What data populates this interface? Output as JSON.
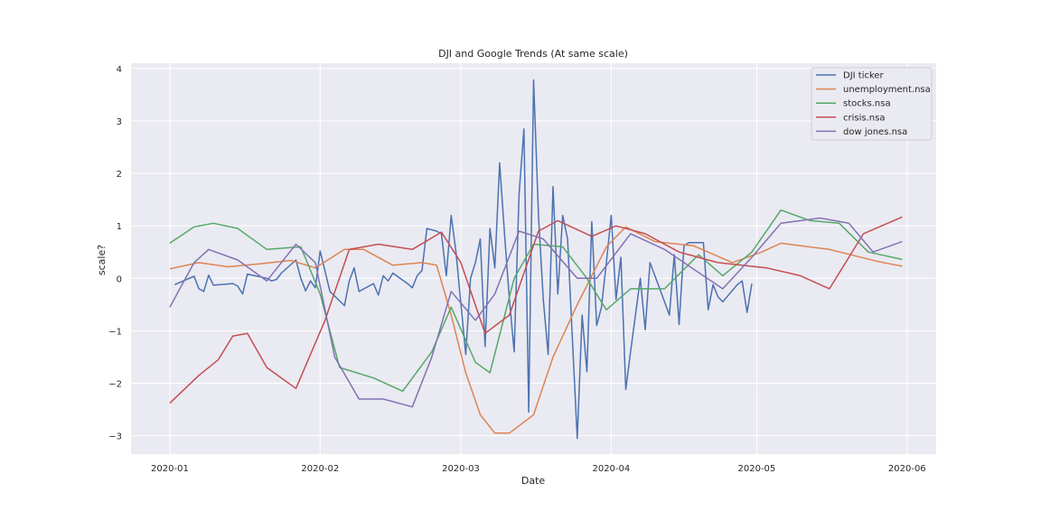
{
  "chart_data": {
    "type": "line",
    "title": "DJI and Google Trends (At same scale)",
    "xlabel": "Date",
    "ylabel": "scale?",
    "x_ticks": [
      "2020-01",
      "2020-02",
      "2020-03",
      "2020-04",
      "2020-05",
      "2020-06"
    ],
    "y_ticks": [
      -3,
      -2,
      -1,
      0,
      1,
      2,
      3,
      4
    ],
    "xlim": [
      "2019-12-24",
      "2020-06-07"
    ],
    "ylim": [
      -3.35,
      4.1
    ],
    "grid": true,
    "legend_position": "top-right",
    "series": [
      {
        "name": "DJI ticker",
        "color": "#4c72b0",
        "points": [
          [
            "2020-01-02",
            -0.12
          ],
          [
            "2020-01-06",
            0.04
          ],
          [
            "2020-01-07",
            -0.2
          ],
          [
            "2020-01-08",
            -0.25
          ],
          [
            "2020-01-09",
            0.06
          ],
          [
            "2020-01-10",
            -0.13
          ],
          [
            "2020-01-14",
            -0.1
          ],
          [
            "2020-01-15",
            -0.15
          ],
          [
            "2020-01-16",
            -0.3
          ],
          [
            "2020-01-17",
            0.08
          ],
          [
            "2020-01-21",
            0.0
          ],
          [
            "2020-01-22",
            -0.05
          ],
          [
            "2020-01-23",
            -0.02
          ],
          [
            "2020-01-24",
            0.1
          ],
          [
            "2020-01-27",
            0.35
          ],
          [
            "2020-01-28",
            0.0
          ],
          [
            "2020-01-29",
            -0.24
          ],
          [
            "2020-01-30",
            -0.05
          ],
          [
            "2020-01-31",
            -0.18
          ],
          [
            "2020-02-01",
            0.52
          ],
          [
            "2020-02-03",
            -0.25
          ],
          [
            "2020-02-06",
            -0.52
          ],
          [
            "2020-02-07",
            -0.05
          ],
          [
            "2020-02-08",
            0.2
          ],
          [
            "2020-02-09",
            -0.25
          ],
          [
            "2020-02-12",
            -0.1
          ],
          [
            "2020-02-13",
            -0.32
          ],
          [
            "2020-02-14",
            0.05
          ],
          [
            "2020-02-15",
            -0.05
          ],
          [
            "2020-02-16",
            0.1
          ],
          [
            "2020-02-19",
            -0.1
          ],
          [
            "2020-02-20",
            -0.18
          ],
          [
            "2020-02-21",
            0.05
          ],
          [
            "2020-02-22",
            0.15
          ],
          [
            "2020-02-23",
            0.95
          ],
          [
            "2020-02-25",
            0.9
          ],
          [
            "2020-02-26",
            0.85
          ],
          [
            "2020-02-27",
            0.05
          ],
          [
            "2020-02-28",
            1.2
          ],
          [
            "2020-02-29",
            0.5
          ],
          [
            "2020-03-02",
            -1.45
          ],
          [
            "2020-03-03",
            0.0
          ],
          [
            "2020-03-04",
            0.3
          ],
          [
            "2020-03-05",
            0.75
          ],
          [
            "2020-03-06",
            -1.3
          ],
          [
            "2020-03-07",
            0.95
          ],
          [
            "2020-03-08",
            0.2
          ],
          [
            "2020-03-09",
            2.2
          ],
          [
            "2020-03-10",
            0.85
          ],
          [
            "2020-03-11",
            -0.4
          ],
          [
            "2020-03-12",
            -1.4
          ],
          [
            "2020-03-13",
            1.6
          ],
          [
            "2020-03-14",
            2.85
          ],
          [
            "2020-03-15",
            -2.55
          ],
          [
            "2020-03-16",
            3.78
          ],
          [
            "2020-03-17",
            1.2
          ],
          [
            "2020-03-18",
            -0.4
          ],
          [
            "2020-03-19",
            -1.45
          ],
          [
            "2020-03-20",
            1.75
          ],
          [
            "2020-03-21",
            -0.3
          ],
          [
            "2020-03-22",
            1.2
          ],
          [
            "2020-03-23",
            0.75
          ],
          [
            "2020-03-24",
            -1.15
          ],
          [
            "2020-03-25",
            -3.05
          ],
          [
            "2020-03-26",
            -0.7
          ],
          [
            "2020-03-27",
            -1.78
          ],
          [
            "2020-03-28",
            1.08
          ],
          [
            "2020-03-29",
            -0.9
          ],
          [
            "2020-03-30",
            -0.55
          ],
          [
            "2020-03-31",
            0.3
          ],
          [
            "2020-04-01",
            1.2
          ],
          [
            "2020-04-02",
            -0.4
          ],
          [
            "2020-04-03",
            0.4
          ],
          [
            "2020-04-04",
            -2.12
          ],
          [
            "2020-04-05",
            -1.4
          ],
          [
            "2020-04-06",
            -0.7
          ],
          [
            "2020-04-07",
            0.0
          ],
          [
            "2020-04-08",
            -0.98
          ],
          [
            "2020-04-09",
            0.3
          ],
          [
            "2020-04-11",
            -0.2
          ],
          [
            "2020-04-13",
            -0.7
          ],
          [
            "2020-04-14",
            0.45
          ],
          [
            "2020-04-15",
            -0.88
          ],
          [
            "2020-04-16",
            0.62
          ],
          [
            "2020-04-17",
            0.68
          ],
          [
            "2020-04-20",
            0.68
          ],
          [
            "2020-04-21",
            -0.6
          ],
          [
            "2020-04-22",
            -0.12
          ],
          [
            "2020-04-23",
            -0.35
          ],
          [
            "2020-04-24",
            -0.45
          ],
          [
            "2020-04-27",
            -0.12
          ],
          [
            "2020-04-28",
            -0.05
          ],
          [
            "2020-04-29",
            -0.65
          ],
          [
            "2020-04-30",
            -0.1
          ]
        ]
      },
      {
        "name": "unemployment.nsa",
        "color": "#dd8452",
        "points": [
          [
            "2020-01-01",
            0.18
          ],
          [
            "2020-01-07",
            0.3
          ],
          [
            "2020-01-13",
            0.22
          ],
          [
            "2020-01-20",
            0.28
          ],
          [
            "2020-01-26",
            0.34
          ],
          [
            "2020-01-31",
            0.2
          ],
          [
            "2020-02-06",
            0.55
          ],
          [
            "2020-02-10",
            0.55
          ],
          [
            "2020-02-16",
            0.25
          ],
          [
            "2020-02-22",
            0.3
          ],
          [
            "2020-02-25",
            0.25
          ],
          [
            "2020-02-28",
            -0.7
          ],
          [
            "2020-03-02",
            -1.8
          ],
          [
            "2020-03-05",
            -2.6
          ],
          [
            "2020-03-08",
            -2.95
          ],
          [
            "2020-03-11",
            -2.95
          ],
          [
            "2020-03-16",
            -2.6
          ],
          [
            "2020-03-20",
            -1.5
          ],
          [
            "2020-03-25",
            -0.5
          ],
          [
            "2020-03-31",
            0.6
          ],
          [
            "2020-04-04",
            0.98
          ],
          [
            "2020-04-10",
            0.7
          ],
          [
            "2020-04-18",
            0.62
          ],
          [
            "2020-04-26",
            0.3
          ],
          [
            "2020-05-02",
            0.5
          ],
          [
            "2020-05-06",
            0.67
          ],
          [
            "2020-05-16",
            0.55
          ],
          [
            "2020-05-26",
            0.32
          ],
          [
            "2020-05-31",
            0.23
          ]
        ]
      },
      {
        "name": "stocks.nsa",
        "color": "#55a868",
        "points": [
          [
            "2020-01-01",
            0.67
          ],
          [
            "2020-01-06",
            0.98
          ],
          [
            "2020-01-10",
            1.05
          ],
          [
            "2020-01-15",
            0.95
          ],
          [
            "2020-01-21",
            0.55
          ],
          [
            "2020-01-28",
            0.6
          ],
          [
            "2020-02-01",
            -0.3
          ],
          [
            "2020-02-05",
            -1.7
          ],
          [
            "2020-02-12",
            -1.9
          ],
          [
            "2020-02-18",
            -2.15
          ],
          [
            "2020-02-24",
            -1.4
          ],
          [
            "2020-02-28",
            -0.55
          ],
          [
            "2020-03-04",
            -1.6
          ],
          [
            "2020-03-07",
            -1.8
          ],
          [
            "2020-03-12",
            0.0
          ],
          [
            "2020-03-16",
            0.65
          ],
          [
            "2020-03-22",
            0.6
          ],
          [
            "2020-03-27",
            0.0
          ],
          [
            "2020-03-31",
            -0.6
          ],
          [
            "2020-04-05",
            -0.2
          ],
          [
            "2020-04-12",
            -0.2
          ],
          [
            "2020-04-19",
            0.45
          ],
          [
            "2020-04-24",
            0.05
          ],
          [
            "2020-04-30",
            0.5
          ],
          [
            "2020-05-06",
            1.3
          ],
          [
            "2020-05-12",
            1.1
          ],
          [
            "2020-05-18",
            1.05
          ],
          [
            "2020-05-24",
            0.5
          ],
          [
            "2020-05-31",
            0.36
          ]
        ]
      },
      {
        "name": "crisis.nsa",
        "color": "#c44e52",
        "points": [
          [
            "2020-01-01",
            -2.38
          ],
          [
            "2020-01-07",
            -1.85
          ],
          [
            "2020-01-11",
            -1.55
          ],
          [
            "2020-01-14",
            -1.1
          ],
          [
            "2020-01-17",
            -1.05
          ],
          [
            "2020-01-21",
            -1.7
          ],
          [
            "2020-01-27",
            -2.1
          ],
          [
            "2020-02-02",
            -0.8
          ],
          [
            "2020-02-07",
            0.55
          ],
          [
            "2020-02-13",
            0.65
          ],
          [
            "2020-02-20",
            0.55
          ],
          [
            "2020-02-26",
            0.88
          ],
          [
            "2020-03-01",
            0.3
          ],
          [
            "2020-03-06",
            -1.05
          ],
          [
            "2020-03-11",
            -0.7
          ],
          [
            "2020-03-17",
            0.9
          ],
          [
            "2020-03-21",
            1.1
          ],
          [
            "2020-03-28",
            0.8
          ],
          [
            "2020-04-02",
            1.0
          ],
          [
            "2020-04-08",
            0.85
          ],
          [
            "2020-04-15",
            0.5
          ],
          [
            "2020-04-23",
            0.3
          ],
          [
            "2020-05-03",
            0.2
          ],
          [
            "2020-05-10",
            0.05
          ],
          [
            "2020-05-16",
            -0.2
          ],
          [
            "2020-05-23",
            0.85
          ],
          [
            "2020-05-31",
            1.17
          ]
        ]
      },
      {
        "name": "dow jones.nsa",
        "color": "#8172b3",
        "points": [
          [
            "2020-01-01",
            -0.55
          ],
          [
            "2020-01-06",
            0.3
          ],
          [
            "2020-01-09",
            0.55
          ],
          [
            "2020-01-15",
            0.35
          ],
          [
            "2020-01-21",
            -0.05
          ],
          [
            "2020-01-27",
            0.65
          ],
          [
            "2020-01-31",
            0.3
          ],
          [
            "2020-02-04",
            -1.5
          ],
          [
            "2020-02-09",
            -2.3
          ],
          [
            "2020-02-14",
            -2.3
          ],
          [
            "2020-02-20",
            -2.45
          ],
          [
            "2020-02-24",
            -1.5
          ],
          [
            "2020-02-28",
            -0.25
          ],
          [
            "2020-03-04",
            -0.8
          ],
          [
            "2020-03-08",
            -0.3
          ],
          [
            "2020-03-13",
            0.9
          ],
          [
            "2020-03-18",
            0.75
          ],
          [
            "2020-03-25",
            0.0
          ],
          [
            "2020-03-29",
            0.0
          ],
          [
            "2020-04-05",
            0.85
          ],
          [
            "2020-04-12",
            0.55
          ],
          [
            "2020-04-16",
            0.3
          ],
          [
            "2020-04-24",
            -0.2
          ],
          [
            "2020-04-30",
            0.4
          ],
          [
            "2020-05-06",
            1.05
          ],
          [
            "2020-05-14",
            1.15
          ],
          [
            "2020-05-20",
            1.05
          ],
          [
            "2020-05-25",
            0.5
          ],
          [
            "2020-05-31",
            0.7
          ]
        ]
      }
    ]
  }
}
